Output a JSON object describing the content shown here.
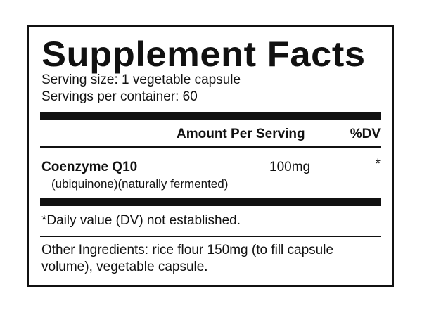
{
  "title": "Supplement Facts",
  "serving_size": "Serving size: 1 vegetable capsule",
  "servings_per_container": "Servings per container: 60",
  "header": {
    "amount": "Amount Per Serving",
    "dv": "%DV"
  },
  "rows": [
    {
      "name": "Coenzyme Q10",
      "subtitle": "(ubiquinone)(naturally fermented)",
      "amount": "100mg",
      "dv": "*"
    }
  ],
  "footnote": "*Daily value (DV) not established.",
  "other_ingredients": [
    "Other Ingredients: rice flour 150mg (to fill capsule",
    "volume), vegetable capsule."
  ]
}
